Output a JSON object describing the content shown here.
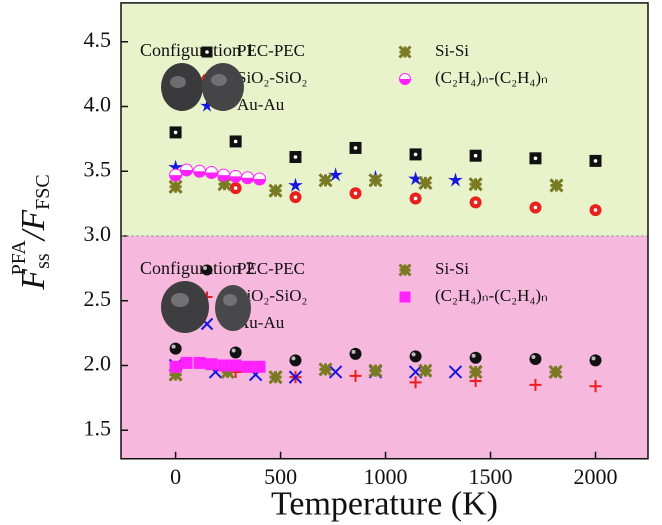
{
  "chart_data": [
    {
      "type": "scatter",
      "title": "Configuration 1",
      "background": "#e8f3cc",
      "xlim": [
        -260,
        2250
      ],
      "ylim": [
        3.0,
        4.8
      ],
      "yticks": [
        3.5,
        {
          "value": 4,
          "label": "4.0"
        },
        4.5
      ],
      "y_label": [
        "F",
        "ss",
        "PFA",
        "/F",
        "FSC"
      ],
      "series": [
        {
          "name": "PEC-PEC",
          "color": "#111111",
          "marker": "square-dot",
          "x": [
            0,
            286,
            571,
            857,
            1143,
            1429,
            1714,
            2000
          ],
          "values": [
            3.8,
            3.73,
            3.61,
            3.68,
            3.63,
            3.62,
            3.6,
            3.58
          ]
        },
        {
          "name": "SiO₂-SiO₂",
          "color": "#e8211d",
          "marker": "circle-dot",
          "x": [
            286,
            571,
            857,
            1143,
            1429,
            1714,
            2000
          ],
          "values": [
            3.37,
            3.3,
            3.33,
            3.29,
            3.26,
            3.22,
            3.2
          ]
        },
        {
          "name": "Au-Au",
          "color": "#1515e0",
          "marker": "star",
          "x": [
            0,
            571,
            762,
            952,
            1143,
            1333
          ],
          "values": [
            3.53,
            3.39,
            3.47,
            3.45,
            3.44,
            3.43
          ]
        },
        {
          "name": "Si-Si",
          "color": "#7a7a22",
          "marker": "x-mark",
          "x": [
            0,
            233,
            476,
            714,
            952,
            1190,
            1429,
            1814
          ],
          "values": [
            3.38,
            3.4,
            3.35,
            3.43,
            3.43,
            3.41,
            3.4,
            3.39
          ]
        },
        {
          "name": "(C₂H₄)ₙ-(C₂H₄)ₙ",
          "color": "#ff22ff",
          "marker": "half-circle",
          "x": [
            0,
            52,
            114,
            171,
            229,
            286,
            343,
            400
          ],
          "values": [
            3.47,
            3.51,
            3.5,
            3.49,
            3.47,
            3.46,
            3.45,
            3.44
          ]
        }
      ]
    },
    {
      "type": "scatter",
      "title": "Configuration 2",
      "background": "#f7b8dd",
      "xlim": [
        -260,
        2250
      ],
      "ylim": [
        1.28,
        3.0
      ],
      "xticks": [
        0,
        500,
        1000,
        1500,
        2000
      ],
      "x_label": "Temperature (K)",
      "yticks": [
        1.5,
        {
          "value": 2,
          "label": "2.0"
        },
        2.5,
        {
          "value": 3,
          "label": "3.0"
        }
      ],
      "series": [
        {
          "name": "PEC-PEC",
          "color": "#111111",
          "marker": "sphere",
          "x": [
            0,
            286,
            571,
            857,
            1143,
            1429,
            1714,
            2000
          ],
          "values": [
            2.13,
            2.1,
            2.04,
            2.09,
            2.07,
            2.06,
            2.05,
            2.04
          ]
        },
        {
          "name": "SiO₂-SiO₂",
          "color": "#ee1c1c",
          "marker": "plus",
          "x": [
            286,
            571,
            857,
            1143,
            1429,
            1714,
            2000
          ],
          "values": [
            1.95,
            1.91,
            1.92,
            1.87,
            1.88,
            1.85,
            1.84
          ]
        },
        {
          "name": "Au-Au",
          "color": "#1515e0",
          "marker": "x",
          "x": [
            0,
            190,
            381,
            571,
            762,
            952,
            1143,
            1333
          ],
          "values": [
            2.0,
            1.95,
            1.93,
            1.91,
            1.95,
            1.95,
            1.95,
            1.95
          ]
        },
        {
          "name": "Si-Si",
          "color": "#7a7a22",
          "marker": "x-mark",
          "x": [
            0,
            248,
            476,
            714,
            952,
            1190,
            1429,
            1810
          ],
          "values": [
            1.93,
            1.95,
            1.91,
            1.97,
            1.96,
            1.96,
            1.95,
            1.95
          ]
        },
        {
          "name": "(C₂H₄)ₙ-(C₂H₄)ₙ",
          "color": "#ff22ff",
          "marker": "square",
          "x": [
            0,
            52,
            114,
            171,
            229,
            286,
            343,
            400
          ],
          "values": [
            1.99,
            2.02,
            2.02,
            2.01,
            2.0,
            2.0,
            1.99,
            1.99
          ]
        }
      ]
    }
  ]
}
